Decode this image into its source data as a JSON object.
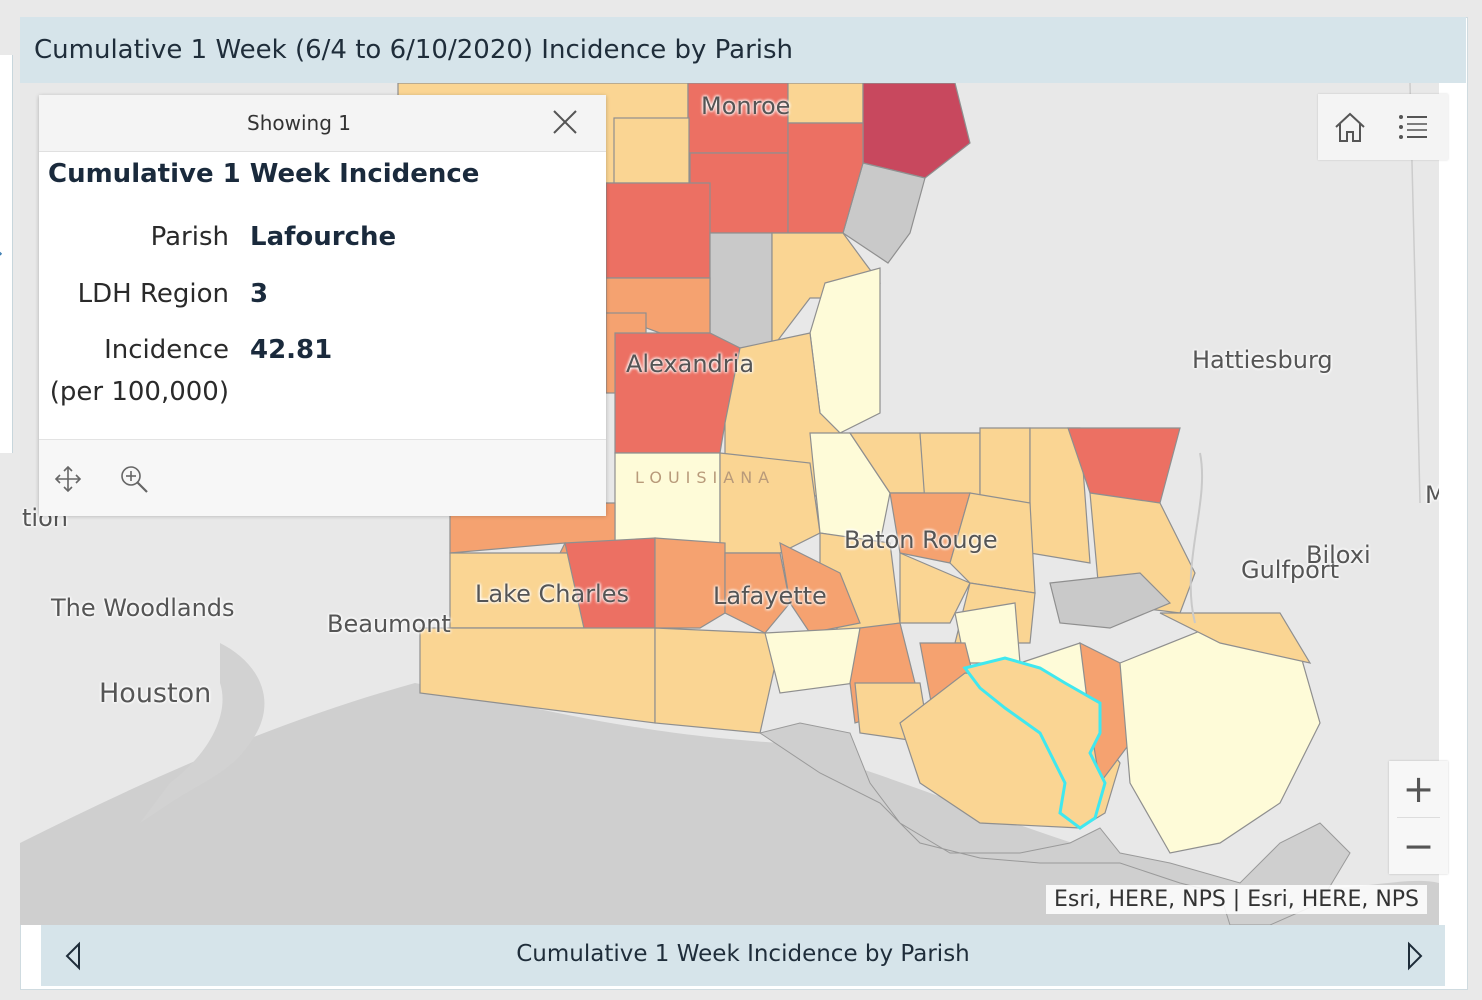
{
  "header": {
    "title": "Cumulative 1 Week (6/4 to 6/10/2020) Incidence by Parish"
  },
  "popup": {
    "count_label": "Showing 1",
    "title": "Cumulative 1 Week Incidence",
    "fields": [
      {
        "label": "Parish",
        "value": "Lafourche"
      },
      {
        "label": "LDH Region",
        "value": "3"
      },
      {
        "label": "Incidence",
        "label2": "(per 100,000)",
        "value": "42.81"
      }
    ]
  },
  "map": {
    "labels": {
      "monroe": "Monroe",
      "alexandria": "Alexandria",
      "louisiana": "LOUISIANA",
      "hattiesburg": "Hattiesburg",
      "baton_rouge": "Baton Rouge",
      "lake_charles": "Lake Charles",
      "lafayette": "Lafayette",
      "beaumont": "Beaumont",
      "the_woodlands": "The Woodlands",
      "houston": "Houston",
      "gulfport": "Gulfport",
      "biloxi": "Biloxi",
      "partial_left": "tion",
      "partial_right": "M"
    },
    "attribution": "Esri, HERE, NPS | Esri, HERE, NPS",
    "colors": {
      "land": "#dddddd",
      "water": "#cfcfcf",
      "very_low": "#fefbd8",
      "low": "#fad593",
      "medium": "#f5a270",
      "high": "#ec7063",
      "very_high": "#c8485e",
      "no_data": "#c9c9c9",
      "highlight": "#40e8ef"
    }
  },
  "footer": {
    "title": "Cumulative 1 Week Incidence by Parish"
  },
  "icons": {
    "close": "close-icon",
    "move": "move-icon",
    "zoom_to": "zoom-to-icon",
    "home": "home-icon",
    "layer_list": "layer-list-icon",
    "zoom_in": "+",
    "zoom_out": "−",
    "prev": "chevron-left-icon",
    "next": "chevron-right-icon"
  }
}
